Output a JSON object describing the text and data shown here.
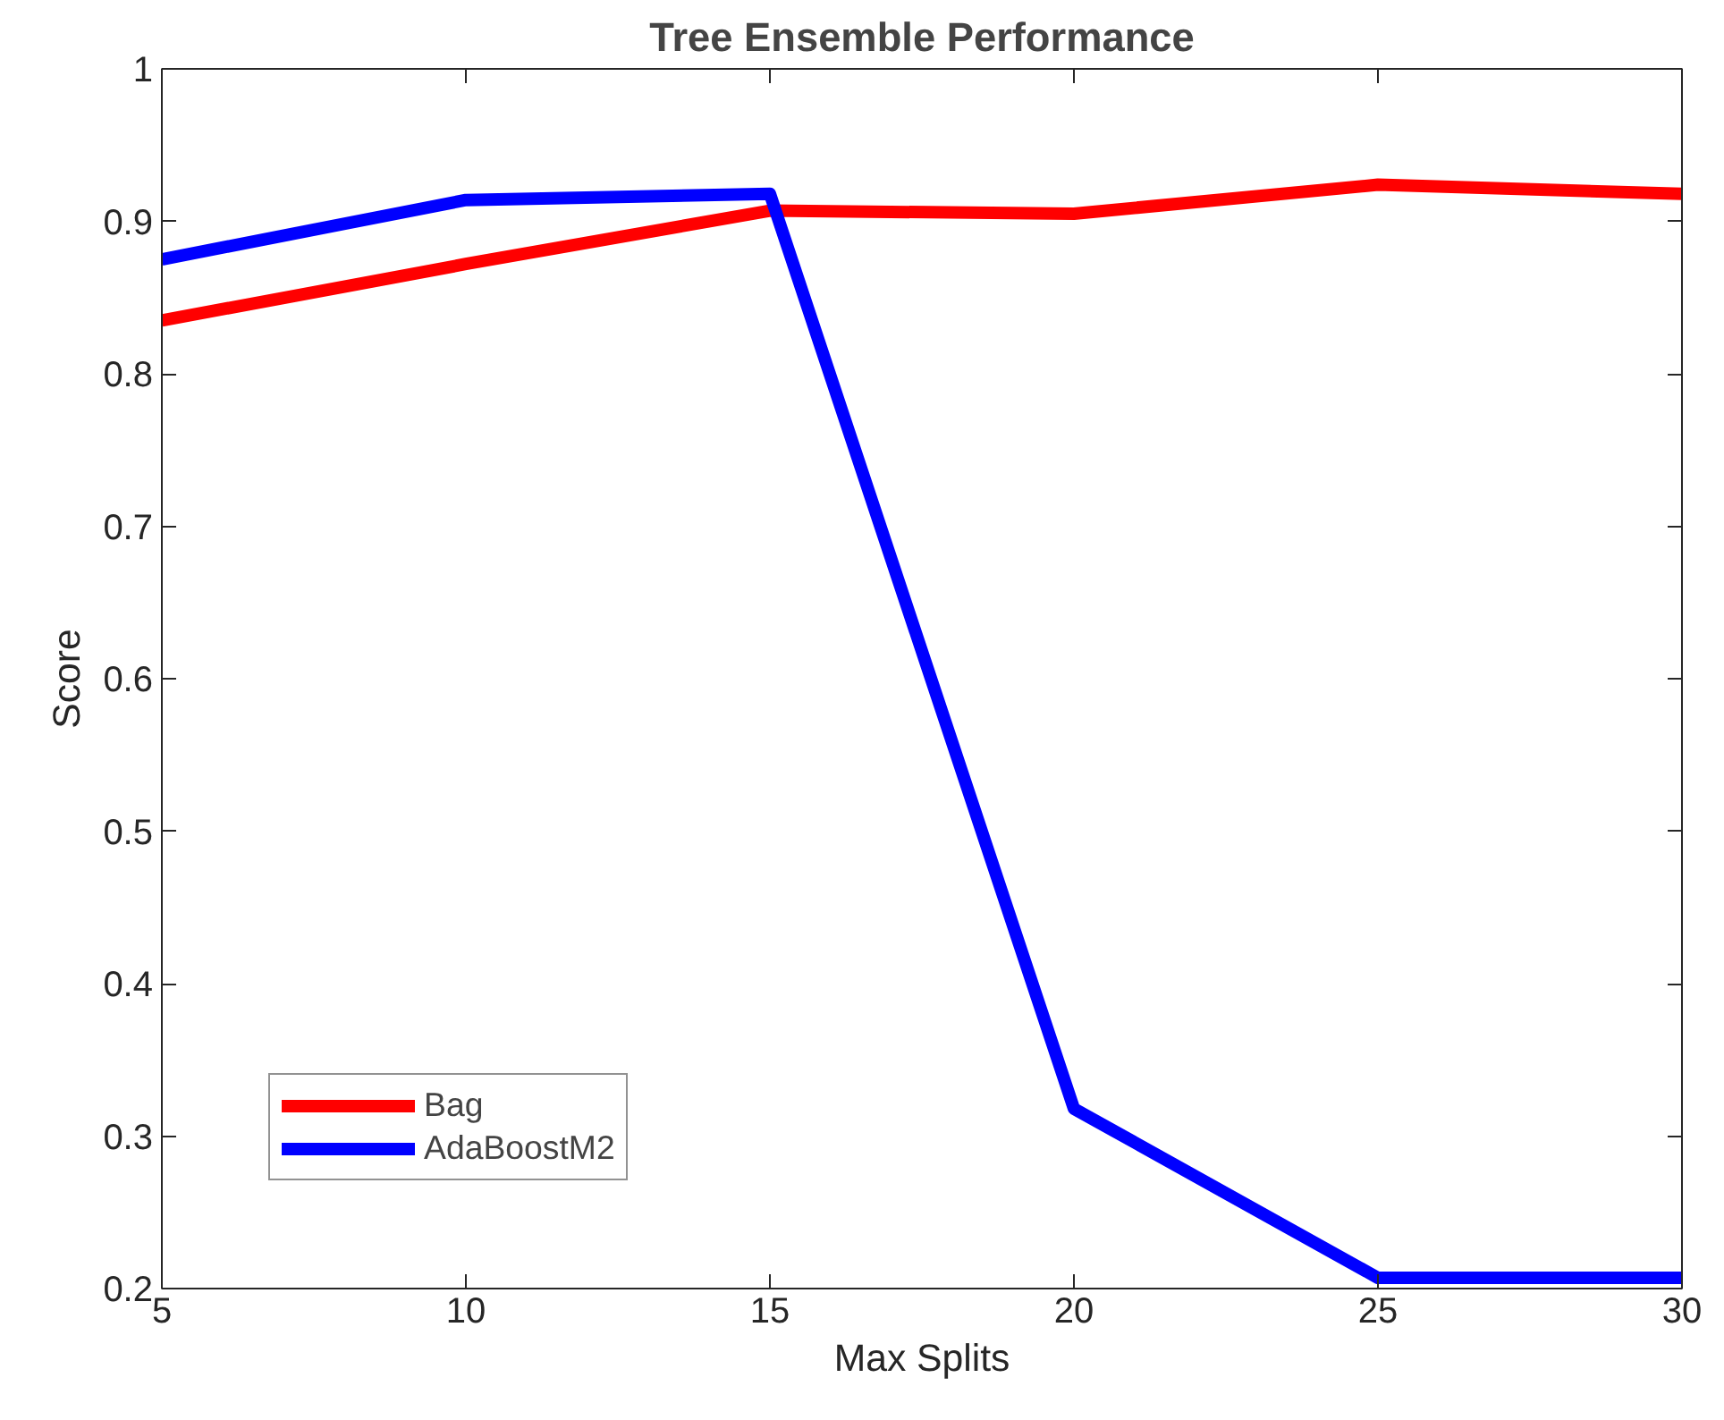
{
  "chart_data": {
    "type": "line",
    "title": "Tree Ensemble Performance",
    "xlabel": "Max Splits",
    "ylabel": "Score",
    "x": [
      5,
      10,
      15,
      20,
      25,
      30
    ],
    "series": [
      {
        "name": "Bag",
        "color": "#ff0000",
        "values": [
          0.835,
          0.872,
          0.907,
          0.905,
          0.924,
          0.918
        ]
      },
      {
        "name": "AdaBoostM2",
        "color": "#0000ff",
        "values": [
          0.875,
          0.914,
          0.918,
          0.318,
          0.207,
          0.207
        ]
      }
    ],
    "xlim": [
      5,
      30
    ],
    "ylim": [
      0.2,
      1
    ],
    "xticks": [
      5,
      10,
      15,
      20,
      25,
      30
    ],
    "yticks": [
      0.2,
      0.3,
      0.4,
      0.5,
      0.6,
      0.7,
      0.8,
      0.9,
      1
    ],
    "grid": false,
    "legend": "bottom left",
    "line_style": "solid",
    "marker": "none"
  }
}
